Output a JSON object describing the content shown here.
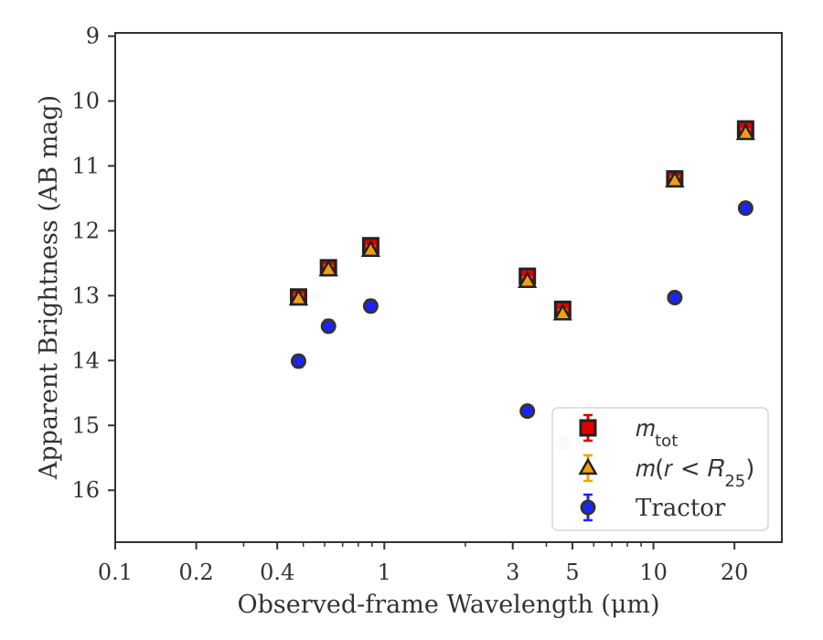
{
  "chart_data": {
    "type": "scatter",
    "xlabel": "Observed-frame Wavelength (μm)",
    "ylabel": "Apparent Brightness (AB mag)",
    "xscale": "log",
    "xlim": [
      0.1,
      30
    ],
    "ylim": [
      16.8,
      8.95
    ],
    "y_inverted": true,
    "grid": false,
    "legend_position": "lower-right",
    "x_ticks": [
      0.1,
      0.2,
      0.4,
      1,
      3,
      5,
      10,
      20
    ],
    "x_tick_labels": [
      "0.1",
      "0.2",
      "0.4",
      "1",
      "3",
      "5",
      "10",
      "20"
    ],
    "y_ticks": [
      9,
      10,
      11,
      12,
      13,
      14,
      15,
      16
    ],
    "y_tick_labels": [
      "9",
      "10",
      "11",
      "12",
      "13",
      "14",
      "15",
      "16"
    ],
    "series": [
      {
        "name": "m_tot",
        "legend_html": "𝑚<tspan baseline-shift='sub' font-size='18'>tot</tspan>",
        "marker": "square",
        "color": "#e00000",
        "edgecolor": "#222222",
        "errorbar_color": "#e00000",
        "points": [
          {
            "x": 0.48,
            "y": 13.02,
            "err": 0.08
          },
          {
            "x": 0.62,
            "y": 12.57,
            "err": 0.08
          },
          {
            "x": 0.89,
            "y": 12.23,
            "err": 0.08
          },
          {
            "x": 3.4,
            "y": 12.7,
            "err": 0.08
          },
          {
            "x": 4.6,
            "y": 13.21,
            "err": 0.08
          },
          {
            "x": 12.0,
            "y": 11.2,
            "err": 0.08
          },
          {
            "x": 22.0,
            "y": 10.43,
            "err": 0.08
          }
        ]
      },
      {
        "name": "m(r < R25)",
        "legend_html": "𝑚(𝑟 &lt; 𝑅<tspan baseline-shift='sub' font-size='18'>25</tspan>)",
        "marker": "triangle",
        "color": "#f39c12",
        "edgecolor": "#222222",
        "errorbar_color": "#f0a500",
        "points": [
          {
            "x": 0.48,
            "y": 13.05,
            "err": 0.06
          },
          {
            "x": 0.62,
            "y": 12.6,
            "err": 0.06
          },
          {
            "x": 0.89,
            "y": 12.3,
            "err": 0.06
          },
          {
            "x": 3.4,
            "y": 12.78,
            "err": 0.06
          },
          {
            "x": 4.6,
            "y": 13.28,
            "err": 0.06
          },
          {
            "x": 12.0,
            "y": 11.23,
            "err": 0.06
          },
          {
            "x": 22.0,
            "y": 10.5,
            "err": 0.06
          }
        ]
      },
      {
        "name": "Tractor",
        "legend_html": "Tractor",
        "marker": "circle",
        "color": "#1a24ff",
        "edgecolor": "#333333",
        "errorbar_color": "#1a24ff",
        "points": [
          {
            "x": 0.48,
            "y": 14.01,
            "err": 0.09
          },
          {
            "x": 0.62,
            "y": 13.47,
            "err": 0.09
          },
          {
            "x": 0.89,
            "y": 13.16,
            "err": 0.09
          },
          {
            "x": 3.4,
            "y": 14.78,
            "err": 0.08
          },
          {
            "x": 4.6,
            "y": 15.28,
            "err": 0.08,
            "alpha": 0.22
          },
          {
            "x": 12.0,
            "y": 13.03,
            "err": 0.08
          },
          {
            "x": 22.0,
            "y": 11.65,
            "err": 0.08
          }
        ]
      }
    ]
  },
  "theme": {
    "axis_color": "#333333",
    "background": "#ffffff"
  }
}
